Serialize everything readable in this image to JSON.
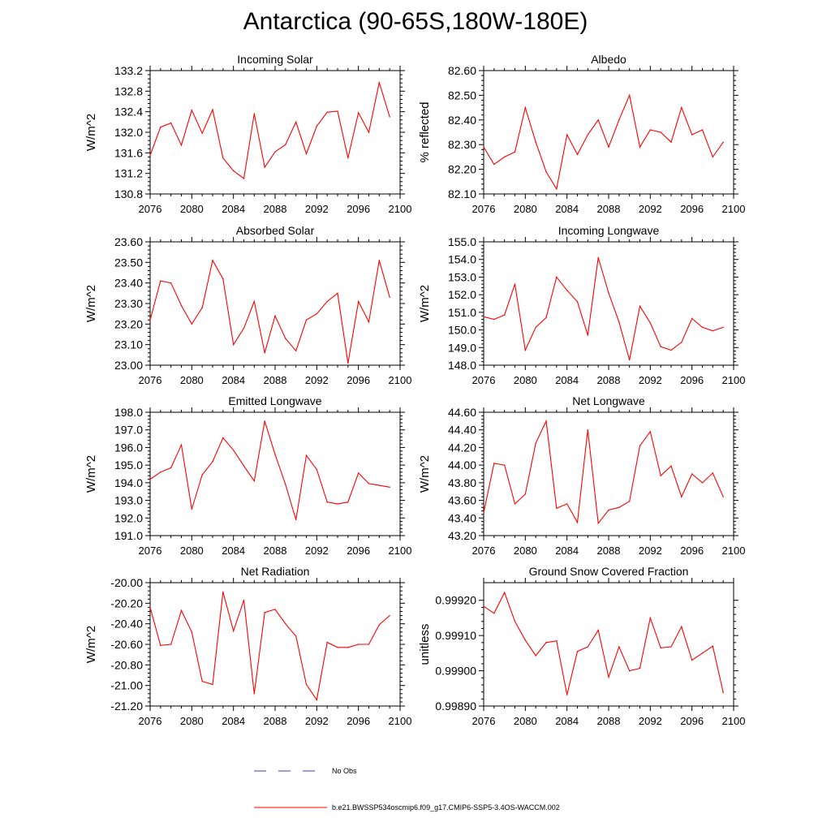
{
  "figure": {
    "title": "Antarctica (90-65S,180W-180E)",
    "legend": [
      {
        "label": "No Obs",
        "color": "#3a3ad0",
        "style": "dashed"
      },
      {
        "label": "b.e21.BWSSP534oscmip6.f09_g17.CMIP6-SSP5-3.4OS-WACCM.002",
        "color": "#ff0000",
        "style": "solid"
      }
    ]
  },
  "chart_data": [
    {
      "type": "line",
      "title": "Incoming Solar",
      "xlabel": "",
      "ylabel": "W/m^2",
      "xlim": [
        2076,
        2100
      ],
      "ylim": [
        130.8,
        133.2
      ],
      "xticks": [
        2076,
        2080,
        2084,
        2088,
        2092,
        2096,
        2100
      ],
      "xticklabels": [
        "2076",
        "2080",
        "2084",
        "2088",
        "2092",
        "2096",
        "2100"
      ],
      "yticks": [
        130.8,
        131.2,
        131.6,
        132.0,
        132.4,
        132.8,
        133.2
      ],
      "yticklabels": [
        "130.8",
        "131.2",
        "131.6",
        "132.0",
        "132.4",
        "132.8",
        "133.2"
      ],
      "series": [
        {
          "name": "b.e21.BWSSP534oscmip6.f09_g17.CMIP6-SSP5-3.4OS-WACCM.002",
          "color": "#ff0000",
          "x": [
            2076,
            2077,
            2078,
            2079,
            2080,
            2081,
            2082,
            2083,
            2084,
            2085,
            2086,
            2087,
            2088,
            2089,
            2090,
            2091,
            2092,
            2093,
            2094,
            2095,
            2096,
            2097,
            2098,
            2099
          ],
          "values": [
            131.55,
            132.1,
            132.18,
            131.75,
            132.43,
            131.98,
            132.44,
            131.5,
            131.25,
            131.1,
            132.36,
            131.32,
            131.62,
            131.76,
            132.2,
            131.58,
            132.12,
            132.39,
            132.41,
            131.5,
            132.38,
            132.0,
            132.97,
            132.3
          ]
        }
      ]
    },
    {
      "type": "line",
      "title": "Albedo",
      "xlabel": "",
      "ylabel": "% reflected",
      "xlim": [
        2076,
        2100
      ],
      "ylim": [
        82.1,
        82.6
      ],
      "xticks": [
        2076,
        2080,
        2084,
        2088,
        2092,
        2096,
        2100
      ],
      "xticklabels": [
        "2076",
        "2080",
        "2084",
        "2088",
        "2092",
        "2096",
        "2100"
      ],
      "yticks": [
        82.1,
        82.2,
        82.3,
        82.4,
        82.5,
        82.6
      ],
      "yticklabels": [
        "82.10",
        "82.20",
        "82.30",
        "82.40",
        "82.50",
        "82.60"
      ],
      "series": [
        {
          "name": "b.e21.BWSSP534oscmip6.f09_g17.CMIP6-SSP5-3.4OS-WACCM.002",
          "color": "#ff0000",
          "x": [
            2076,
            2077,
            2078,
            2079,
            2080,
            2081,
            2082,
            2083,
            2084,
            2085,
            2086,
            2087,
            2088,
            2089,
            2090,
            2091,
            2092,
            2093,
            2094,
            2095,
            2096,
            2097,
            2098,
            2099
          ],
          "values": [
            82.29,
            82.22,
            82.25,
            82.27,
            82.45,
            82.31,
            82.19,
            82.12,
            82.34,
            82.26,
            82.34,
            82.4,
            82.29,
            82.4,
            82.5,
            82.29,
            82.36,
            82.35,
            82.31,
            82.45,
            82.34,
            82.36,
            82.25,
            82.31
          ]
        }
      ]
    },
    {
      "type": "line",
      "title": "Absorbed Solar",
      "xlabel": "",
      "ylabel": "W/m^2",
      "xlim": [
        2076,
        2100
      ],
      "ylim": [
        23.0,
        23.6
      ],
      "xticks": [
        2076,
        2080,
        2084,
        2088,
        2092,
        2096,
        2100
      ],
      "xticklabels": [
        "2076",
        "2080",
        "2084",
        "2088",
        "2092",
        "2096",
        "2100"
      ],
      "yticks": [
        23.0,
        23.1,
        23.2,
        23.3,
        23.4,
        23.5,
        23.6
      ],
      "yticklabels": [
        "23.00",
        "23.10",
        "23.20",
        "23.30",
        "23.40",
        "23.50",
        "23.60"
      ],
      "series": [
        {
          "name": "b.e21.BWSSP534oscmip6.f09_g17.CMIP6-SSP5-3.4OS-WACCM.002",
          "color": "#ff0000",
          "x": [
            2076,
            2077,
            2078,
            2079,
            2080,
            2081,
            2082,
            2083,
            2084,
            2085,
            2086,
            2087,
            2088,
            2089,
            2090,
            2091,
            2092,
            2093,
            2094,
            2095,
            2096,
            2097,
            2098,
            2099
          ],
          "values": [
            23.22,
            23.41,
            23.4,
            23.29,
            23.2,
            23.28,
            23.51,
            23.42,
            23.1,
            23.18,
            23.31,
            23.06,
            23.24,
            23.13,
            23.07,
            23.22,
            23.25,
            23.31,
            23.35,
            23.01,
            23.31,
            23.21,
            23.51,
            23.33
          ]
        }
      ]
    },
    {
      "type": "line",
      "title": "Incoming Longwave",
      "xlabel": "",
      "ylabel": "W/m^2",
      "xlim": [
        2076,
        2100
      ],
      "ylim": [
        148.0,
        155.0
      ],
      "xticks": [
        2076,
        2080,
        2084,
        2088,
        2092,
        2096,
        2100
      ],
      "xticklabels": [
        "2076",
        "2080",
        "2084",
        "2088",
        "2092",
        "2096",
        "2100"
      ],
      "yticks": [
        148.0,
        149.0,
        150.0,
        151.0,
        152.0,
        153.0,
        154.0,
        155.0
      ],
      "yticklabels": [
        "148.0",
        "149.0",
        "150.0",
        "151.0",
        "152.0",
        "153.0",
        "154.0",
        "155.0"
      ],
      "series": [
        {
          "name": "b.e21.BWSSP534oscmip6.f09_g17.CMIP6-SSP5-3.4OS-WACCM.002",
          "color": "#ff0000",
          "x": [
            2076,
            2077,
            2078,
            2079,
            2080,
            2081,
            2082,
            2083,
            2084,
            2085,
            2086,
            2087,
            2088,
            2089,
            2090,
            2091,
            2092,
            2093,
            2094,
            2095,
            2096,
            2097,
            2098,
            2099
          ],
          "values": [
            150.75,
            150.6,
            150.85,
            152.6,
            148.85,
            150.15,
            150.7,
            153.0,
            152.25,
            151.6,
            149.7,
            154.1,
            152.1,
            150.45,
            148.3,
            151.35,
            150.4,
            149.05,
            148.85,
            149.3,
            150.65,
            150.15,
            149.95,
            150.15
          ]
        }
      ]
    },
    {
      "type": "line",
      "title": "Emitted Longwave",
      "xlabel": "",
      "ylabel": "W/m^2",
      "xlim": [
        2076,
        2100
      ],
      "ylim": [
        191.0,
        198.0
      ],
      "xticks": [
        2076,
        2080,
        2084,
        2088,
        2092,
        2096,
        2100
      ],
      "xticklabels": [
        "2076",
        "2080",
        "2084",
        "2088",
        "2092",
        "2096",
        "2100"
      ],
      "yticks": [
        191.0,
        192.0,
        193.0,
        194.0,
        195.0,
        196.0,
        197.0,
        198.0
      ],
      "yticklabels": [
        "191.0",
        "192.0",
        "193.0",
        "194.0",
        "195.0",
        "196.0",
        "197.0",
        "198.0"
      ],
      "series": [
        {
          "name": "b.e21.BWSSP534oscmip6.f09_g17.CMIP6-SSP5-3.4OS-WACCM.002",
          "color": "#ff0000",
          "x": [
            2076,
            2077,
            2078,
            2079,
            2080,
            2081,
            2082,
            2083,
            2084,
            2085,
            2086,
            2087,
            2088,
            2089,
            2090,
            2091,
            2092,
            2093,
            2094,
            2095,
            2096,
            2097,
            2098,
            2099
          ],
          "values": [
            194.2,
            194.6,
            194.85,
            196.15,
            192.5,
            194.45,
            195.2,
            196.55,
            195.85,
            194.95,
            194.1,
            197.5,
            195.6,
            193.9,
            191.9,
            195.55,
            194.75,
            192.9,
            192.8,
            192.9,
            194.55,
            193.95,
            193.85,
            193.75
          ]
        }
      ]
    },
    {
      "type": "line",
      "title": "Net Longwave",
      "xlabel": "",
      "ylabel": "W/m^2",
      "xlim": [
        2076,
        2100
      ],
      "ylim": [
        43.2,
        44.6
      ],
      "xticks": [
        2076,
        2080,
        2084,
        2088,
        2092,
        2096,
        2100
      ],
      "xticklabels": [
        "2076",
        "2080",
        "2084",
        "2088",
        "2092",
        "2096",
        "2100"
      ],
      "yticks": [
        43.2,
        43.4,
        43.6,
        43.8,
        44.0,
        44.2,
        44.4,
        44.6
      ],
      "yticklabels": [
        "43.20",
        "43.40",
        "43.60",
        "43.80",
        "44.00",
        "44.20",
        "44.40",
        "44.60"
      ],
      "series": [
        {
          "name": "b.e21.BWSSP534oscmip6.f09_g17.CMIP6-SSP5-3.4OS-WACCM.002",
          "color": "#ff0000",
          "x": [
            2076,
            2077,
            2078,
            2079,
            2080,
            2081,
            2082,
            2083,
            2084,
            2085,
            2086,
            2087,
            2088,
            2089,
            2090,
            2091,
            2092,
            2093,
            2094,
            2095,
            2096,
            2097,
            2098,
            2099
          ],
          "values": [
            43.46,
            44.02,
            44.0,
            43.56,
            43.67,
            44.25,
            44.5,
            43.51,
            43.56,
            43.35,
            44.4,
            43.34,
            43.49,
            43.52,
            43.59,
            44.22,
            44.38,
            43.88,
            43.99,
            43.64,
            43.9,
            43.8,
            43.91,
            43.64
          ]
        }
      ]
    },
    {
      "type": "line",
      "title": "Net Radiation",
      "xlabel": "",
      "ylabel": "W/m^2",
      "xlim": [
        2076,
        2100
      ],
      "ylim": [
        -21.2,
        -20.0
      ],
      "xticks": [
        2076,
        2080,
        2084,
        2088,
        2092,
        2096,
        2100
      ],
      "xticklabels": [
        "2076",
        "2080",
        "2084",
        "2088",
        "2092",
        "2096",
        "2100"
      ],
      "yticks": [
        -21.2,
        -21.0,
        -20.8,
        -20.6,
        -20.4,
        -20.2,
        -20.0
      ],
      "yticklabels": [
        "-21.20",
        "-21.00",
        "-20.80",
        "-20.60",
        "-20.40",
        "-20.20",
        "-20.00"
      ],
      "series": [
        {
          "name": "b.e21.BWSSP534oscmip6.f09_g17.CMIP6-SSP5-3.4OS-WACCM.002",
          "color": "#ff0000",
          "x": [
            2076,
            2077,
            2078,
            2079,
            2080,
            2081,
            2082,
            2083,
            2084,
            2085,
            2086,
            2087,
            2088,
            2089,
            2090,
            2091,
            2092,
            2093,
            2094,
            2095,
            2096,
            2097,
            2098,
            2099
          ],
          "values": [
            -20.24,
            -20.61,
            -20.6,
            -20.27,
            -20.48,
            -20.96,
            -20.99,
            -20.09,
            -20.47,
            -20.17,
            -21.08,
            -20.29,
            -20.26,
            -20.4,
            -20.52,
            -20.99,
            -21.14,
            -20.58,
            -20.63,
            -20.63,
            -20.6,
            -20.6,
            -20.41,
            -20.32
          ]
        }
      ]
    },
    {
      "type": "line",
      "title": "Ground Snow Covered Fraction",
      "xlabel": "",
      "ylabel": "unitless",
      "xlim": [
        2076,
        2100
      ],
      "ylim": [
        0.9989,
        0.99925
      ],
      "xticks": [
        2076,
        2080,
        2084,
        2088,
        2092,
        2096,
        2100
      ],
      "xticklabels": [
        "2076",
        "2080",
        "2084",
        "2088",
        "2092",
        "2096",
        "2100"
      ],
      "yticks": [
        0.9989,
        0.999,
        0.9991,
        0.9992
      ],
      "yticklabels": [
        "0.99890",
        "0.99900",
        "0.99910",
        "0.99920"
      ],
      "series": [
        {
          "name": "b.e21.BWSSP534oscmip6.f09_g17.CMIP6-SSP5-3.4OS-WACCM.002",
          "color": "#ff0000",
          "x": [
            2076,
            2077,
            2078,
            2079,
            2080,
            2081,
            2082,
            2083,
            2084,
            2085,
            2086,
            2087,
            2088,
            2089,
            2090,
            2091,
            2092,
            2093,
            2094,
            2095,
            2096,
            2097,
            2098,
            2099
          ],
          "values": [
            0.999183,
            0.999163,
            0.999222,
            0.99914,
            0.999087,
            0.999043,
            0.99908,
            0.999085,
            0.998932,
            0.999055,
            0.999068,
            0.999115,
            0.998982,
            0.999068,
            0.999,
            0.999007,
            0.99915,
            0.999065,
            0.999068,
            0.999125,
            0.99903,
            0.99905,
            0.99907,
            0.998938
          ]
        }
      ]
    }
  ]
}
